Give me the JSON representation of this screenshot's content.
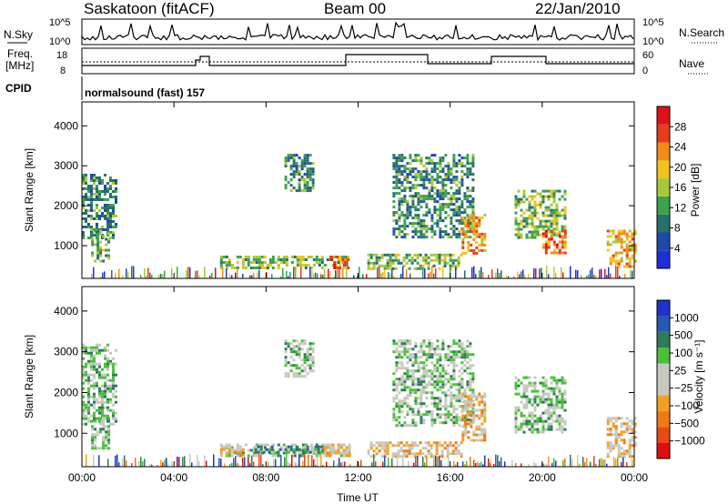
{
  "header": {
    "station": "Saskatoon (fitACF)",
    "beam": "Beam 00",
    "date": "22/Jan/2010"
  },
  "top_panels": {
    "nsky_label": "N.Sky",
    "nsky_ticks": [
      "10^5",
      "10^0"
    ],
    "nsearch_label": "N.Search",
    "nsearch_ticks": [
      "10^5",
      "10^0"
    ],
    "freq_label_1": "Freq.",
    "freq_label_2": "[MHz]",
    "freq_ticks": [
      "18",
      "8"
    ],
    "nave_label": "Nave",
    "nave_ticks": [
      "60",
      "0"
    ],
    "cpid_label": "CPID",
    "cpid_text": "normalsound (fast) 157"
  },
  "colors": {
    "power": [
      "#1e2fd8",
      "#1e4aa8",
      "#2a6f6a",
      "#3fa050",
      "#a8c83a",
      "#f2c21f",
      "#f08c1a",
      "#e83c1e",
      "#e0101a"
    ],
    "velocity": [
      "#2033c8",
      "#245ab2",
      "#2f7a5a",
      "#4bbf3a",
      "#c8c8c0",
      "#c8c8c0",
      "#f0a024",
      "#ee7a18",
      "#e84a14",
      "#e01010"
    ]
  },
  "power_colorbar": {
    "label": "Power [dB]",
    "ticks": [
      "28",
      "24",
      "20",
      "16",
      "12",
      "8",
      "4"
    ]
  },
  "velocity_colorbar": {
    "label": "Velocity [m s⁻¹]",
    "ticks": [
      "1000",
      "500",
      "100",
      "25",
      "−25",
      "−100",
      "−500",
      "−1000"
    ]
  },
  "chart_data": [
    {
      "type": "heatmap",
      "name_printed": "Power",
      "xlabel": "Time UT",
      "ylabel": "Slant Range [km]",
      "x_ticks": [
        "00:00",
        "04:00",
        "08:00",
        "12:00",
        "16:00",
        "20:00",
        "00:00"
      ],
      "y_ticks": [
        1000,
        2000,
        3000,
        4000
      ],
      "xlim_hours": [
        0,
        24
      ],
      "ylim_km": [
        180,
        4600
      ],
      "colorbar_label": "Power [dB]",
      "colorbar_range": [
        0,
        30
      ],
      "regions": [
        {
          "t0": 0.0,
          "t1": 1.5,
          "r0": 1200,
          "r1": 2800,
          "level": 3
        },
        {
          "t0": 0.4,
          "t1": 1.2,
          "r0": 600,
          "r1": 1400,
          "level": 4
        },
        {
          "t0": 6.0,
          "t1": 11.5,
          "r0": 450,
          "r1": 750,
          "level": 4
        },
        {
          "t0": 10.8,
          "t1": 11.6,
          "r0": 450,
          "r1": 750,
          "level": 7
        },
        {
          "t0": 8.8,
          "t1": 10.0,
          "r0": 2400,
          "r1": 3300,
          "level": 3
        },
        {
          "t0": 12.4,
          "t1": 16.5,
          "r0": 450,
          "r1": 800,
          "level": 4
        },
        {
          "t0": 13.5,
          "t1": 17.0,
          "r0": 1200,
          "r1": 3300,
          "level": 3
        },
        {
          "t0": 16.5,
          "t1": 17.5,
          "r0": 800,
          "r1": 1800,
          "level": 6
        },
        {
          "t0": 18.8,
          "t1": 21.0,
          "r0": 1200,
          "r1": 2400,
          "level": 4
        },
        {
          "t0": 20.0,
          "t1": 21.0,
          "r0": 800,
          "r1": 1400,
          "level": 7
        },
        {
          "t0": 22.8,
          "t1": 24.0,
          "r0": 450,
          "r1": 1400,
          "level": 6
        }
      ]
    },
    {
      "type": "heatmap",
      "name_printed": "Velocity",
      "xlabel": "Time UT",
      "ylabel": "Slant Range [km]",
      "x_ticks": [
        "00:00",
        "04:00",
        "08:00",
        "12:00",
        "16:00",
        "20:00",
        "00:00"
      ],
      "y_ticks": [
        1000,
        2000,
        3000,
        4000
      ],
      "xlim_hours": [
        0,
        24
      ],
      "ylim_km": [
        180,
        4600
      ],
      "colorbar_label": "Velocity [m s⁻¹]",
      "colorbar_range": [
        -1000,
        1000
      ],
      "regions": [
        {
          "t0": 0.0,
          "t1": 1.5,
          "r0": 1200,
          "r1": 3200,
          "level": 4
        },
        {
          "t0": 0.4,
          "t1": 1.2,
          "r0": 600,
          "r1": 1400,
          "level": 4
        },
        {
          "t0": 6.0,
          "t1": 11.5,
          "r0": 450,
          "r1": 750,
          "level": 4
        },
        {
          "t0": 7.5,
          "t1": 10.5,
          "r0": 550,
          "r1": 700,
          "level": 3
        },
        {
          "t0": 6.0,
          "t1": 7.0,
          "r0": 450,
          "r1": 700,
          "level": 6
        },
        {
          "t0": 10.5,
          "t1": 11.6,
          "r0": 450,
          "r1": 750,
          "level": 6
        },
        {
          "t0": 8.8,
          "t1": 10.0,
          "r0": 2400,
          "r1": 3300,
          "level": 4
        },
        {
          "t0": 12.4,
          "t1": 16.5,
          "r0": 450,
          "r1": 800,
          "level": 6
        },
        {
          "t0": 13.5,
          "t1": 17.0,
          "r0": 1200,
          "r1": 3300,
          "level": 4
        },
        {
          "t0": 16.5,
          "t1": 17.5,
          "r0": 800,
          "r1": 2000,
          "level": 6
        },
        {
          "t0": 18.8,
          "t1": 21.0,
          "r0": 1000,
          "r1": 2400,
          "level": 4
        },
        {
          "t0": 22.8,
          "t1": 24.0,
          "r0": 450,
          "r1": 1400,
          "level": 6
        }
      ]
    }
  ]
}
